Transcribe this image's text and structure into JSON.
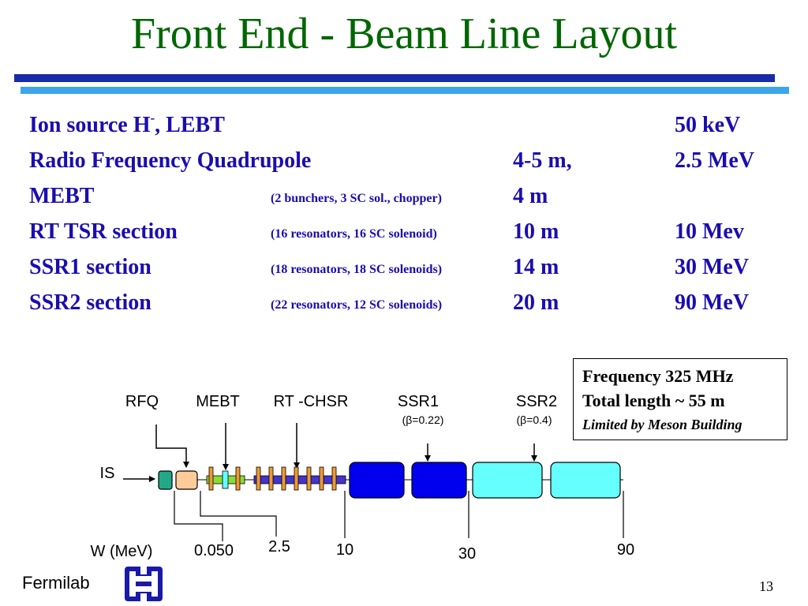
{
  "title": "Front End - Beam Line Layout",
  "sections": [
    {
      "name": "Ion source H",
      "name_sup": "-",
      "name_suffix": ", LEBT",
      "detail": "",
      "length": "",
      "energy": "50 keV"
    },
    {
      "name": "Radio Frequency Quadrupole",
      "name_sup": "",
      "name_suffix": "",
      "detail": "",
      "length": "4-5 m,",
      "energy": "2.5 MeV"
    },
    {
      "name": "MEBT",
      "name_sup": "",
      "name_suffix": "",
      "detail": "(2 bunchers, 3 SC sol., chopper)",
      "length": "4 m",
      "energy": ""
    },
    {
      "name": "RT TSR section",
      "name_sup": "",
      "name_suffix": "",
      "detail": "(16 resonators, 16 SC solenoid)",
      "length": "10 m",
      "energy": "10 Mev"
    },
    {
      "name": "SSR1 section",
      "name_sup": "",
      "name_suffix": "",
      "detail": "(18 resonators,  18 SC solenoids)",
      "length": "14 m",
      "energy": "30 MeV"
    },
    {
      "name": "SSR2 section",
      "name_sup": "",
      "name_suffix": "",
      "detail": "(22  resonators, 12  SC solenoids)",
      "length": "20 m",
      "energy": "90 MeV"
    }
  ],
  "info_box": {
    "frequency": "Frequency 325 MHz",
    "total_length": "Total length ~ 55 m",
    "limit": "Limited by Meson Building"
  },
  "diagram": {
    "labels": {
      "rfq": "RFQ",
      "mebt": "MEBT",
      "rt_chsr": "RT -CHSR",
      "ssr1": "SSR1",
      "ssr1_beta": "(β=0.22)",
      "ssr2": "SSR2",
      "ssr2_beta": "(β=0.4)",
      "is": "IS",
      "energy_axis": "W (MeV)"
    },
    "energy_markers": [
      "0.050",
      "2.5",
      "10",
      "30",
      "90"
    ],
    "colors": {
      "ion_source": "#22aa88",
      "rfq": "#ffcc99",
      "mebt": "#88dd33",
      "chsr_pipe": "#4433cc",
      "chsr_resonator": "#ee9933",
      "ssr1": "#0000ee",
      "ssr2": "#66ffff"
    }
  },
  "footer": {
    "brand": "Fermilab",
    "logo_icon": "fermilab-logo-icon",
    "page": "13"
  }
}
